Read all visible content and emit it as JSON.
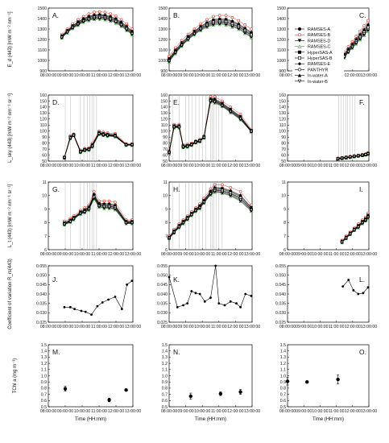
{
  "figure": {
    "x_label": "Time (HH:mm)",
    "time_ticks": [
      "08:00:00",
      "09:00:00",
      "10:00:00",
      "11:00:00",
      "12:00:00",
      "13:00:00"
    ],
    "legend": [
      {
        "name": "RAMSES-A",
        "color": "#000000",
        "marker": "circle-filled",
        "line": "#000000"
      },
      {
        "name": "RAMSES-B",
        "color": "#e03020",
        "marker": "circle-open",
        "line": "#e03020"
      },
      {
        "name": "RAMSES-D",
        "color": "#000000",
        "marker": "triangle-down-filled",
        "line": "#000000"
      },
      {
        "name": "RAMSES-C",
        "color": "#30a030",
        "marker": "triangle-up-open",
        "line": "#30a030"
      },
      {
        "name": "HyperSAS-A",
        "color": "#000000",
        "marker": "square-filled",
        "line": "#000000"
      },
      {
        "name": "HyperSAS-B",
        "color": "#000000",
        "marker": "square-open",
        "line": "#000000"
      },
      {
        "name": "RAMSES-E",
        "color": "#000000",
        "marker": "diamond-filled",
        "line": "#000000"
      },
      {
        "name": "PANTHYR",
        "color": "#000000",
        "marker": "circle-open",
        "line": "#000000"
      },
      {
        "name": "In-water-A",
        "color": "#000000",
        "marker": "triangle-up-filled",
        "line": "#000000"
      },
      {
        "name": "In-water-B",
        "color": "#000000",
        "marker": "triangle-down-open",
        "line": "#000000"
      }
    ],
    "row_ylabels": [
      "E_d (443) [mW m⁻² nm⁻¹]",
      "L_sky (443) [mW m⁻² nm⁻¹ sr⁻¹]",
      "L_t (443) [mW m⁻² nm⁻¹ sr⁻¹]",
      "Coefficient of variation R_rs(443)",
      "TChl a (mg m⁻³)"
    ]
  },
  "chart_data": [
    {
      "id": "A",
      "type": "line",
      "ylim": [
        900,
        1500
      ],
      "yticks": [
        900,
        1000,
        1100,
        1200,
        1300,
        1400,
        1500
      ],
      "lo": [
        1210,
        1260,
        1300,
        1330,
        1360,
        1375,
        1385,
        1388,
        1382,
        1370,
        1350,
        1320,
        1280,
        1240
      ],
      "hi": [
        1250,
        1300,
        1350,
        1390,
        1420,
        1445,
        1460,
        1465,
        1460,
        1445,
        1425,
        1390,
        1350,
        1300
      ],
      "t0": 8.8,
      "t1": 12.95,
      "vlines": []
    },
    {
      "id": "B",
      "type": "line",
      "ylim": [
        900,
        1500
      ],
      "yticks": [
        900,
        1000,
        1100,
        1200,
        1300,
        1400,
        1500
      ],
      "lo": [
        980,
        1060,
        1130,
        1190,
        1240,
        1280,
        1310,
        1330,
        1335,
        1330,
        1310,
        1290,
        1250,
        1210
      ],
      "hi": [
        1040,
        1120,
        1190,
        1250,
        1300,
        1350,
        1390,
        1420,
        1430,
        1430,
        1410,
        1380,
        1340,
        1300
      ],
      "t0": 8.0,
      "t1": 12.95,
      "vlines": []
    },
    {
      "id": "C",
      "type": "line",
      "ylim": [
        900,
        1500
      ],
      "yticks": [
        900,
        1000,
        1100,
        1200,
        1300,
        1400,
        1500
      ],
      "lo": [
        970,
        1020,
        1070,
        1110,
        1150,
        1190,
        1230,
        1270
      ],
      "hi": [
        1030,
        1080,
        1130,
        1180,
        1230,
        1280,
        1330,
        1380
      ],
      "t0": 11.25,
      "t1": 12.95,
      "vlines": []
    },
    {
      "id": "D",
      "type": "line",
      "ylim": [
        50,
        160
      ],
      "yticks": [
        50,
        60,
        70,
        80,
        90,
        100,
        110,
        120,
        130,
        140,
        150,
        160
      ],
      "lo": [
        55,
        87,
        92,
        64,
        67,
        68,
        73,
        94,
        92,
        91,
        90,
        76,
        76
      ],
      "hi": [
        57,
        92,
        95,
        68,
        71,
        72,
        80,
        100,
        98,
        97,
        96,
        79,
        79
      ],
      "tvals": [
        8.95,
        9.3,
        9.5,
        9.9,
        10.15,
        10.4,
        10.6,
        11.0,
        11.25,
        11.5,
        11.95,
        12.6,
        12.95
      ],
      "vlines": [
        9.0,
        9.3,
        9.9,
        10.1,
        10.3,
        10.45,
        10.6,
        10.7,
        10.85
      ]
    },
    {
      "id": "E",
      "type": "line",
      "ylim": [
        50,
        160
      ],
      "yticks": [
        50,
        60,
        70,
        80,
        90,
        100,
        110,
        120,
        130,
        140,
        150,
        160
      ],
      "lo": [
        63,
        105,
        105,
        72,
        73,
        76,
        80,
        82,
        88,
        148,
        146,
        140,
        130,
        118,
        98
      ],
      "hi": [
        67,
        111,
        111,
        77,
        78,
        80,
        84,
        86,
        92,
        157,
        157,
        150,
        140,
        128,
        103
      ],
      "tvals": [
        8.0,
        8.3,
        8.6,
        8.85,
        9.1,
        9.35,
        9.6,
        9.85,
        10.1,
        10.5,
        10.75,
        11.2,
        11.7,
        12.3,
        12.95
      ],
      "vlines": [
        8.2,
        8.6,
        9.0,
        9.2,
        9.4,
        9.6,
        9.8,
        10.0,
        10.2,
        10.5,
        10.6,
        10.7,
        10.85,
        11.0,
        11.2
      ]
    },
    {
      "id": "F",
      "type": "line",
      "ylim": [
        50,
        160
      ],
      "yticks": [
        50,
        60,
        70,
        80,
        90,
        100,
        110,
        120,
        130,
        140,
        150,
        160
      ],
      "lo": [
        53,
        54,
        55,
        56,
        57,
        58,
        59,
        60,
        61
      ],
      "hi": [
        55,
        56,
        57,
        58,
        59,
        60,
        61,
        62,
        64
      ],
      "tvals": [
        11.1,
        11.35,
        11.6,
        11.85,
        12.1,
        12.35,
        12.6,
        12.8,
        12.95
      ],
      "vlines": [
        11.15,
        11.3,
        11.45,
        11.6,
        11.7,
        11.85,
        12.0,
        12.15
      ]
    },
    {
      "id": "G",
      "type": "line",
      "ylim": [
        6,
        11
      ],
      "yticks": [
        6,
        7,
        8,
        9,
        10,
        11
      ],
      "lo": [
        7.8,
        8.0,
        8.2,
        8.6,
        8.7,
        8.9,
        9.7,
        9.1,
        9.0,
        9.0,
        8.9,
        7.9,
        7.9
      ],
      "hi": [
        8.1,
        8.3,
        8.5,
        8.9,
        9.1,
        9.3,
        10.3,
        9.6,
        9.6,
        9.6,
        9.5,
        8.2,
        8.2
      ],
      "tvals": [
        8.95,
        9.3,
        9.5,
        9.9,
        10.15,
        10.4,
        10.7,
        11.0,
        11.3,
        11.6,
        11.95,
        12.6,
        12.95
      ],
      "vlines": [
        9.0,
        9.3,
        9.9,
        10.1,
        10.3,
        10.45,
        10.6,
        10.7,
        10.85
      ]
    },
    {
      "id": "H",
      "type": "line",
      "ylim": [
        6,
        11
      ],
      "yticks": [
        6,
        7,
        8,
        9,
        10,
        11
      ],
      "lo": [
        6.8,
        7.2,
        7.6,
        7.9,
        8.2,
        8.5,
        8.8,
        9.0,
        9.4,
        10.0,
        10.2,
        10.1,
        9.9,
        9.5,
        8.8
      ],
      "hi": [
        7.0,
        7.5,
        7.9,
        8.2,
        8.5,
        8.8,
        9.1,
        9.4,
        9.8,
        10.5,
        10.8,
        10.8,
        10.6,
        10.3,
        9.3
      ],
      "tvals": [
        8.0,
        8.3,
        8.6,
        8.85,
        9.1,
        9.35,
        9.6,
        9.85,
        10.1,
        10.5,
        10.75,
        11.2,
        11.7,
        12.3,
        12.95
      ],
      "vlines": [
        8.2,
        8.6,
        9.0,
        9.2,
        9.4,
        9.6,
        9.8,
        10.0,
        10.2,
        10.5,
        10.6,
        10.7,
        10.85,
        11.0,
        11.2
      ]
    },
    {
      "id": "I",
      "type": "line",
      "ylim": [
        6,
        11
      ],
      "yticks": [
        6,
        7,
        8,
        9,
        10,
        11
      ],
      "lo": [
        6.5,
        6.8,
        7.1,
        7.4,
        7.6,
        7.9,
        8.1,
        8.3
      ],
      "hi": [
        6.7,
        7.0,
        7.3,
        7.6,
        7.9,
        8.2,
        8.4,
        8.7
      ],
      "tvals": [
        11.35,
        11.6,
        11.85,
        12.1,
        12.35,
        12.6,
        12.8,
        12.95
      ],
      "vlines": []
    },
    {
      "id": "J",
      "type": "line",
      "ylim": [
        0.025,
        0.055
      ],
      "yticks": [
        0.025,
        0.03,
        0.035,
        0.04,
        0.045,
        0.05,
        0.055
      ],
      "x": [
        8.95,
        9.3,
        9.55,
        9.95,
        10.2,
        10.55,
        10.9,
        11.2,
        11.55,
        11.95,
        12.35,
        12.65,
        12.95
      ],
      "y": [
        0.033,
        0.033,
        0.032,
        0.031,
        0.0305,
        0.029,
        0.0335,
        0.0355,
        0.037,
        0.0385,
        0.032,
        0.045,
        0.047
      ]
    },
    {
      "id": "K",
      "type": "line",
      "ylim": [
        0.025,
        0.055
      ],
      "yticks": [
        0.025,
        0.03,
        0.035,
        0.04,
        0.045,
        0.05,
        0.055
      ],
      "x": [
        8.0,
        8.5,
        8.85,
        9.1,
        9.35,
        9.6,
        9.85,
        10.15,
        10.5,
        10.8,
        11.0,
        11.35,
        11.7,
        12.05,
        12.3,
        12.6,
        12.95
      ],
      "y": [
        0.049,
        0.033,
        0.034,
        0.035,
        0.0415,
        0.0405,
        0.04,
        0.036,
        0.038,
        0.055,
        0.035,
        0.034,
        0.036,
        0.035,
        0.033,
        0.04,
        0.039
      ]
    },
    {
      "id": "L",
      "type": "line",
      "ylim": [
        0.025,
        0.055
      ],
      "yticks": [
        0.025,
        0.03,
        0.035,
        0.04,
        0.045,
        0.05,
        0.055
      ],
      "x": [
        11.4,
        11.75,
        12.05,
        12.35,
        12.65,
        12.95
      ],
      "y": [
        0.044,
        0.0475,
        0.042,
        0.04,
        0.0405,
        0.0435
      ]
    },
    {
      "id": "M",
      "type": "scatter",
      "ylim": [
        0.5,
        1.5
      ],
      "yticks": [
        0.5,
        0.6,
        0.7,
        0.8,
        0.9,
        1.0,
        1.1,
        1.2,
        1.3,
        1.4,
        1.5
      ],
      "x": [
        9.0,
        11.6,
        12.6
      ],
      "y": [
        0.79,
        0.61,
        0.77
      ],
      "err": [
        0.04,
        0.03,
        0.015
      ]
    },
    {
      "id": "N",
      "type": "scatter",
      "ylim": [
        0.5,
        1.5
      ],
      "yticks": [
        0.5,
        0.6,
        0.7,
        0.8,
        0.9,
        1.0,
        1.1,
        1.2,
        1.3,
        1.4,
        1.5
      ],
      "x": [
        9.3,
        11.1,
        12.3
      ],
      "y": [
        0.67,
        0.71,
        0.74
      ],
      "err": [
        0.05,
        0.03,
        0.04
      ]
    },
    {
      "id": "O",
      "type": "scatter",
      "ylim": [
        0.5,
        1.5
      ],
      "yticks": [
        0.5,
        0.6,
        0.7,
        0.8,
        0.9,
        1.0,
        1.1,
        1.2,
        1.3,
        1.4,
        1.5
      ],
      "x": [
        8.0,
        9.2,
        11.1
      ],
      "y": [
        0.91,
        0.9,
        0.94
      ],
      "err": [
        0.06,
        0.01,
        0.07
      ]
    }
  ]
}
